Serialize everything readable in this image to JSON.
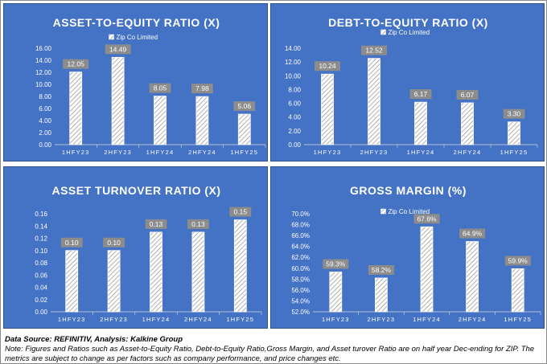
{
  "colors": {
    "panel_bg": "#4472c4",
    "bar_fill": "#ffffff",
    "hatch": "#8e8e8e",
    "label_bg": "#8c8c8c",
    "text": "#ffffff"
  },
  "legend_label": "Zip Co Limited",
  "chart_data": [
    {
      "type": "bar",
      "title": "ASSET-TO-EQUITY RATIO (X)",
      "categories": [
        "1HFY23",
        "2HFY23",
        "1HFY24",
        "2HFY24",
        "1HFY25"
      ],
      "series": [
        {
          "name": "Zip Co Limited",
          "values": [
            12.05,
            14.49,
            8.05,
            7.98,
            5.06
          ]
        }
      ],
      "data_labels": [
        "12.05",
        "14.49",
        "8.05",
        "7.98",
        "5.06"
      ],
      "ylim": [
        0,
        16
      ],
      "yticks": [
        "0.00",
        "2.00",
        "4.00",
        "6.00",
        "8.00",
        "10.00",
        "12.00",
        "14.00",
        "16.00"
      ],
      "legend": "top-center",
      "grid": false
    },
    {
      "type": "bar",
      "title": "DEBT-TO-EQUITY RATIO  (X)",
      "categories": [
        "1HFY23",
        "2HFY23",
        "1HFY24",
        "2HFY24",
        "1HFY25"
      ],
      "series": [
        {
          "name": "Zip Co Limited",
          "values": [
            10.24,
            12.52,
            6.17,
            6.07,
            3.3
          ]
        }
      ],
      "data_labels": [
        "10.24",
        "12.52",
        "6.17",
        "6.07",
        "3.30"
      ],
      "ylim": [
        0,
        14
      ],
      "yticks": [
        "0.00",
        "2.00",
        "4.00",
        "6.00",
        "8.00",
        "10.00",
        "12.00",
        "14.00"
      ],
      "legend": "top-center",
      "grid": false
    },
    {
      "type": "bar",
      "title": "ASSET TURNOVER RATIO (X)",
      "categories": [
        "1HFY23",
        "2HFY23",
        "1HFY24",
        "2HFY24",
        "1HFY25"
      ],
      "series": [
        {
          "name": "Zip Co Limited",
          "values": [
            0.1,
            0.1,
            0.13,
            0.13,
            0.15
          ]
        }
      ],
      "data_labels": [
        "0.10",
        "0.10",
        "0.13",
        "0.13",
        "0.15"
      ],
      "ylim": [
        0,
        0.16
      ],
      "yticks": [
        "0.00",
        "0.02",
        "0.04",
        "0.06",
        "0.08",
        "0.10",
        "0.12",
        "0.14",
        "0.16"
      ],
      "legend": "none",
      "grid": false
    },
    {
      "type": "bar",
      "title": "GROSS MARGIN (%)",
      "categories": [
        "1HFY23",
        "2HFY23",
        "1HFY24",
        "2HFY24",
        "1HFY25"
      ],
      "series": [
        {
          "name": "Zip Co Limited",
          "values": [
            59.3,
            58.2,
            67.6,
            64.9,
            59.9
          ]
        }
      ],
      "data_labels": [
        "59.3%",
        "58.2%",
        "67.6%",
        "64.9%",
        "59.9%"
      ],
      "ylim": [
        52,
        70
      ],
      "yticks": [
        "52.0%",
        "54.0%",
        "56.0%",
        "58.0%",
        "60.0%",
        "62.0%",
        "64.0%",
        "66.0%",
        "68.0%",
        "70.0%"
      ],
      "legend": "top-center",
      "grid": false
    }
  ],
  "footer": {
    "source": "Data Source: REFINITIV, Analysis: Kalkine Group",
    "note": "Note: Figures and Ratios such as  Asset-to-Equity Ratio, Debt-to-Equity Ratio,Gross Margin, and Asset turover Ratio are on half year Dec-ending for ZIP. The metrics are subject to change as per factors such as company performance, and price changes etc."
  }
}
